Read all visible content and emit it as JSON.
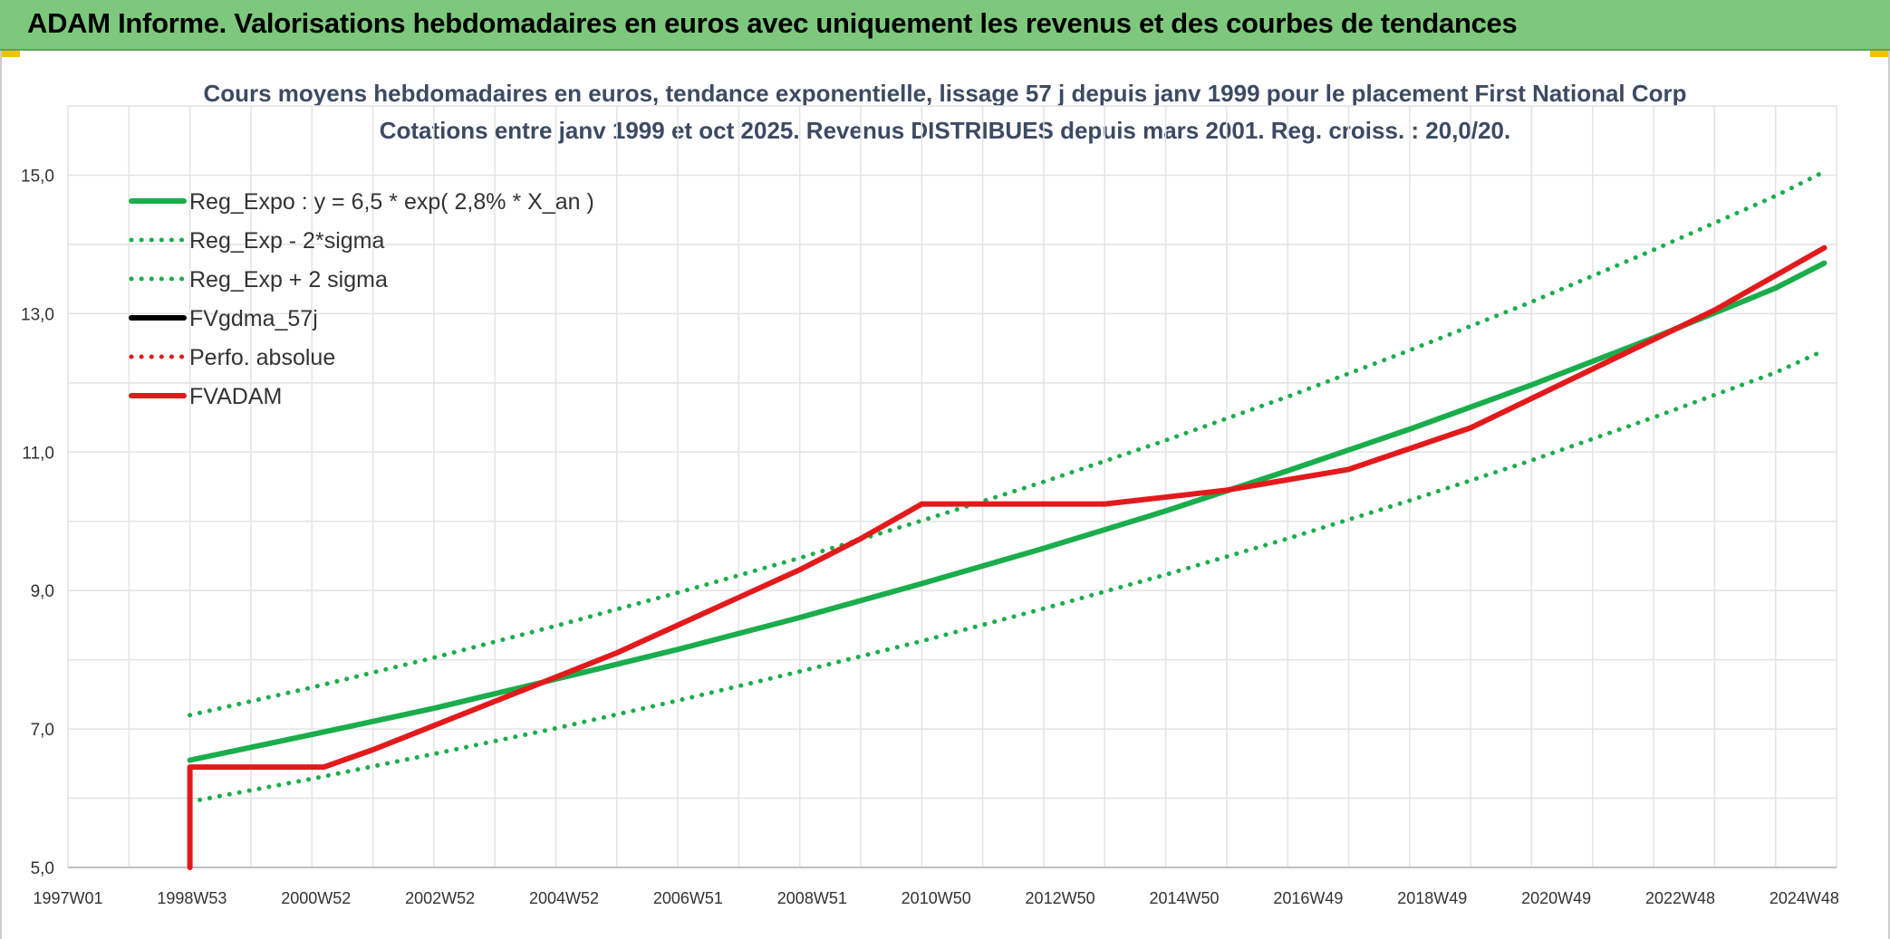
{
  "banner": {
    "title": "ADAM Informe. Valorisations hebdomadaires en euros avec uniquement les revenus et des courbes de tendances"
  },
  "chart_data": {
    "type": "line",
    "title": "Cours moyens hebdomadaires en euros, tendance exponentielle, lissage 57 j depuis janv 1999 pour le placement First National Corp",
    "subtitle": "Cotations entre janv 1999 et oct 2025. Revenus DISTRIBUES depuis mars 2001. Reg. croiss. : 20,0/20.",
    "xlabel": "",
    "ylabel": "",
    "x_ticks": [
      "1997W01",
      "1998W53",
      "2000W52",
      "2002W52",
      "2004W52",
      "2006W51",
      "2008W51",
      "2010W50",
      "2012W50",
      "2014W50",
      "2016W49",
      "2018W49",
      "2020W49",
      "2022W48",
      "2024W48"
    ],
    "xlim": [
      1997.0,
      2026.0
    ],
    "ylim": [
      5.0,
      16.0
    ],
    "y_ticks": [
      "5,0",
      "7,0",
      "9,0",
      "11,0",
      "13,0",
      "15,0"
    ],
    "y_tick_values": [
      5,
      7,
      9,
      11,
      13,
      15
    ],
    "grid": true,
    "legend_position": "top-left",
    "series": [
      {
        "name": "Reg_Expo : y = 6,5 * exp( 2,8% *  X_an )",
        "color": "#1aad4b",
        "style": "solid",
        "x": [
          1999.0,
          2001.0,
          2003.0,
          2005.0,
          2007.0,
          2009.0,
          2011.0,
          2013.0,
          2015.0,
          2017.0,
          2019.0,
          2021.0,
          2023.0,
          2025.0,
          2025.8
        ],
        "y": [
          6.55,
          6.92,
          7.3,
          7.72,
          8.15,
          8.61,
          9.1,
          9.61,
          10.15,
          10.73,
          11.33,
          11.97,
          12.65,
          13.37,
          13.73
        ]
      },
      {
        "name": "Reg_Exp - 2*sigma",
        "color": "#1aad4b",
        "style": "dotted",
        "x": [
          1999.0,
          2001.0,
          2003.0,
          2005.0,
          2007.0,
          2009.0,
          2011.0,
          2013.0,
          2015.0,
          2017.0,
          2019.0,
          2021.0,
          2023.0,
          2025.0,
          2025.8
        ],
        "y": [
          5.95,
          6.28,
          6.64,
          7.01,
          7.41,
          7.83,
          8.27,
          8.74,
          9.23,
          9.75,
          10.3,
          10.88,
          11.5,
          12.15,
          12.47
        ]
      },
      {
        "name": "Reg_Exp + 2 sigma",
        "color": "#1aad4b",
        "style": "dotted",
        "x": [
          1999.0,
          2001.0,
          2003.0,
          2005.0,
          2007.0,
          2009.0,
          2011.0,
          2013.0,
          2015.0,
          2017.0,
          2019.0,
          2021.0,
          2023.0,
          2025.0,
          2025.8
        ],
        "y": [
          7.2,
          7.6,
          8.03,
          8.49,
          8.97,
          9.47,
          10.01,
          10.57,
          11.17,
          11.8,
          12.47,
          13.17,
          13.92,
          14.7,
          15.05
        ]
      },
      {
        "name": "FVgdma_57j",
        "color": "#000000",
        "style": "solid",
        "x": [],
        "y": []
      },
      {
        "name": "Perfo. absolue",
        "color": "#e31a1c",
        "style": "dotted",
        "x": [],
        "y": []
      },
      {
        "name": "FVADAM",
        "color": "#e31a1c",
        "style": "solid",
        "x": [
          1999.0,
          1999.0,
          2001.2,
          2002.0,
          2003.0,
          2004.0,
          2005.0,
          2006.0,
          2007.0,
          2008.0,
          2009.0,
          2010.0,
          2010.7,
          2011.0,
          2014.0,
          2016.0,
          2018.0,
          2020.0,
          2022.0,
          2024.0,
          2025.8
        ],
        "y": [
          5.0,
          6.45,
          6.45,
          6.7,
          7.05,
          7.4,
          7.75,
          8.1,
          8.5,
          8.9,
          9.3,
          9.75,
          10.1,
          10.25,
          10.25,
          10.45,
          10.75,
          11.35,
          12.2,
          13.05,
          13.95
        ]
      }
    ]
  }
}
